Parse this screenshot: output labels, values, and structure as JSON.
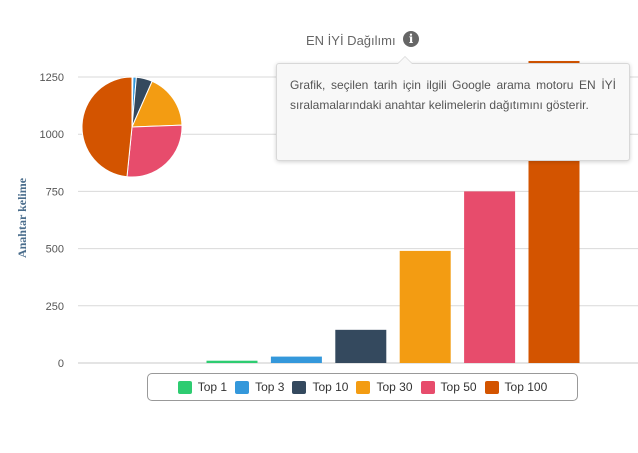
{
  "header": {
    "title": "EN İYİ Dağılımı",
    "info_icon": "info-circle-icon"
  },
  "tooltip": {
    "text": "Grafik, seçilen tarih için ilgili Google arama motoru EN İYİ sıralamalarındaki anahtar kelimelerin dağıtımını gösterir."
  },
  "colors": {
    "Top 1": "#2ecc71",
    "Top 3": "#3498db",
    "Top 10": "#34495e",
    "Top 30": "#f39c12",
    "Top 50": "#e74c6c",
    "Top 100": "#d35400"
  },
  "chart_data": [
    {
      "type": "bar",
      "categories": [
        "Top 1",
        "Top 3",
        "Top 10",
        "Top 30",
        "Top 50",
        "Top 100"
      ],
      "values": [
        10,
        28,
        145,
        490,
        750,
        1320
      ],
      "ylabel": "Anahtar kelime",
      "yticks": [
        0,
        250,
        500,
        750,
        1000,
        1250
      ],
      "ylim": [
        0,
        1250
      ],
      "grid": true,
      "legend": "bottom"
    },
    {
      "type": "pie",
      "labels": [
        "Top 1",
        "Top 3",
        "Top 10",
        "Top 30",
        "Top 50",
        "Top 100"
      ],
      "values": [
        3,
        11,
        52,
        178,
        272,
        484
      ]
    }
  ]
}
